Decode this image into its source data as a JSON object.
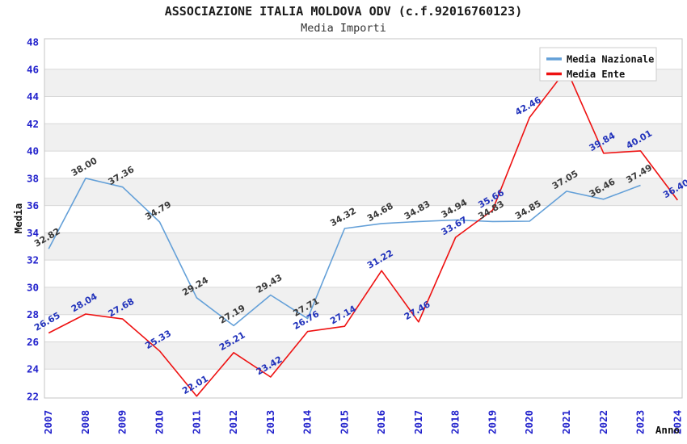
{
  "chart_data": {
    "type": "line",
    "title": "ASSOCIAZIONE ITALIA MOLDOVA ODV (c.f.92016760123)",
    "subtitle": "Media Importi",
    "xlabel": "Anno",
    "ylabel": "Media",
    "x": [
      2007,
      2008,
      2009,
      2010,
      2011,
      2012,
      2013,
      2014,
      2015,
      2016,
      2017,
      2018,
      2019,
      2020,
      2021,
      2022,
      2023,
      2024
    ],
    "ylim": [
      22,
      48
    ],
    "ytick_step": 2,
    "grid": true,
    "plot_bands_alternate": true,
    "legend_position": "top-right",
    "series": [
      {
        "name": "Media Nazionale",
        "color": "#64A0D8",
        "label_color": "#3a3a3a",
        "values": [
          32.82,
          38.0,
          37.36,
          34.79,
          29.24,
          27.19,
          29.43,
          27.71,
          34.32,
          34.68,
          34.83,
          34.94,
          34.83,
          34.85,
          37.05,
          36.46,
          37.49,
          null
        ],
        "labels": [
          "32.82",
          "38.00",
          "37.36",
          "34.79",
          "29.24",
          "27.19",
          "29.43",
          "27.71",
          "34.32",
          "34.68",
          "34.83",
          "34.94",
          "34.83",
          "34.85",
          "37.05",
          "36.46",
          "37.49",
          ""
        ]
      },
      {
        "name": "Media Ente",
        "color": "#EE1111",
        "label_color": "#2233BB",
        "values": [
          26.65,
          28.04,
          27.68,
          25.33,
          22.01,
          25.21,
          23.42,
          26.76,
          27.14,
          31.22,
          27.46,
          33.67,
          35.66,
          42.46,
          46.0,
          39.84,
          40.01,
          36.4
        ],
        "labels": [
          "26.65",
          "28.04",
          "27.68",
          "25.33",
          "22.01",
          "25.21",
          "23.42",
          "26.76",
          "27.14",
          "31.22",
          "27.46",
          "33.67",
          "35.66",
          "42.46",
          "",
          "39.84",
          "40.01",
          "36.40"
        ]
      }
    ],
    "colors": {
      "tick_label": "#2222CC",
      "axis_title": "#111111",
      "band_fill": "#f0f0f0",
      "grid_line": "#d8d8d8",
      "plot_border": "#c4c4c4",
      "legend_bg": "#ffffff",
      "legend_border": "#cccccc",
      "legend_text": "#111111"
    }
  }
}
